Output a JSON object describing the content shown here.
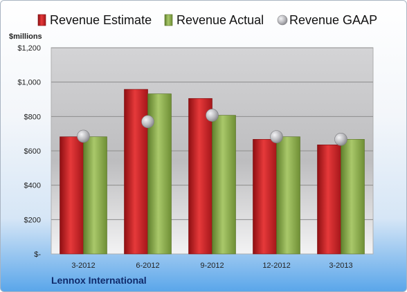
{
  "company": "Lennox International",
  "chart_data": {
    "type": "bar",
    "ylabel": "$millions",
    "ylim": [
      0,
      1200
    ],
    "yticks": [
      0,
      200,
      400,
      600,
      800,
      1000,
      1200
    ],
    "ytick_labels": [
      "$-",
      "$200",
      "$400",
      "$600",
      "$800",
      "$1,000",
      "$1,200"
    ],
    "categories": [
      "3-2012",
      "6-2012",
      "9-2012",
      "12-2012",
      "3-2013"
    ],
    "series": [
      {
        "name": "Revenue Estimate",
        "values": [
          682,
          958,
          905,
          667,
          635
        ],
        "color": "#cc1f1f"
      },
      {
        "name": "Revenue Actual",
        "values": [
          682,
          932,
          807,
          682,
          667
        ],
        "color": "#8ab04a"
      },
      {
        "name": "Revenue GAAP",
        "values": [
          685,
          770,
          807,
          682,
          667
        ],
        "color": "#b8b8bc"
      }
    ],
    "grid": true,
    "legend_position": "top"
  }
}
